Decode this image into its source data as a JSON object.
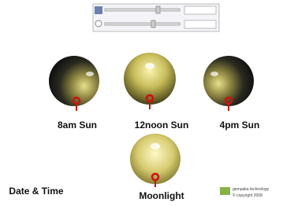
{
  "spheres": [
    {
      "label": "8am Sun"
    },
    {
      "label": "12noon Sun"
    },
    {
      "label": "4pm Sun"
    },
    {
      "label": "Moonlight"
    }
  ],
  "caption": "Date & Time",
  "logo": {
    "name": "gempaka technology",
    "copyright": "© copyright 2008"
  }
}
